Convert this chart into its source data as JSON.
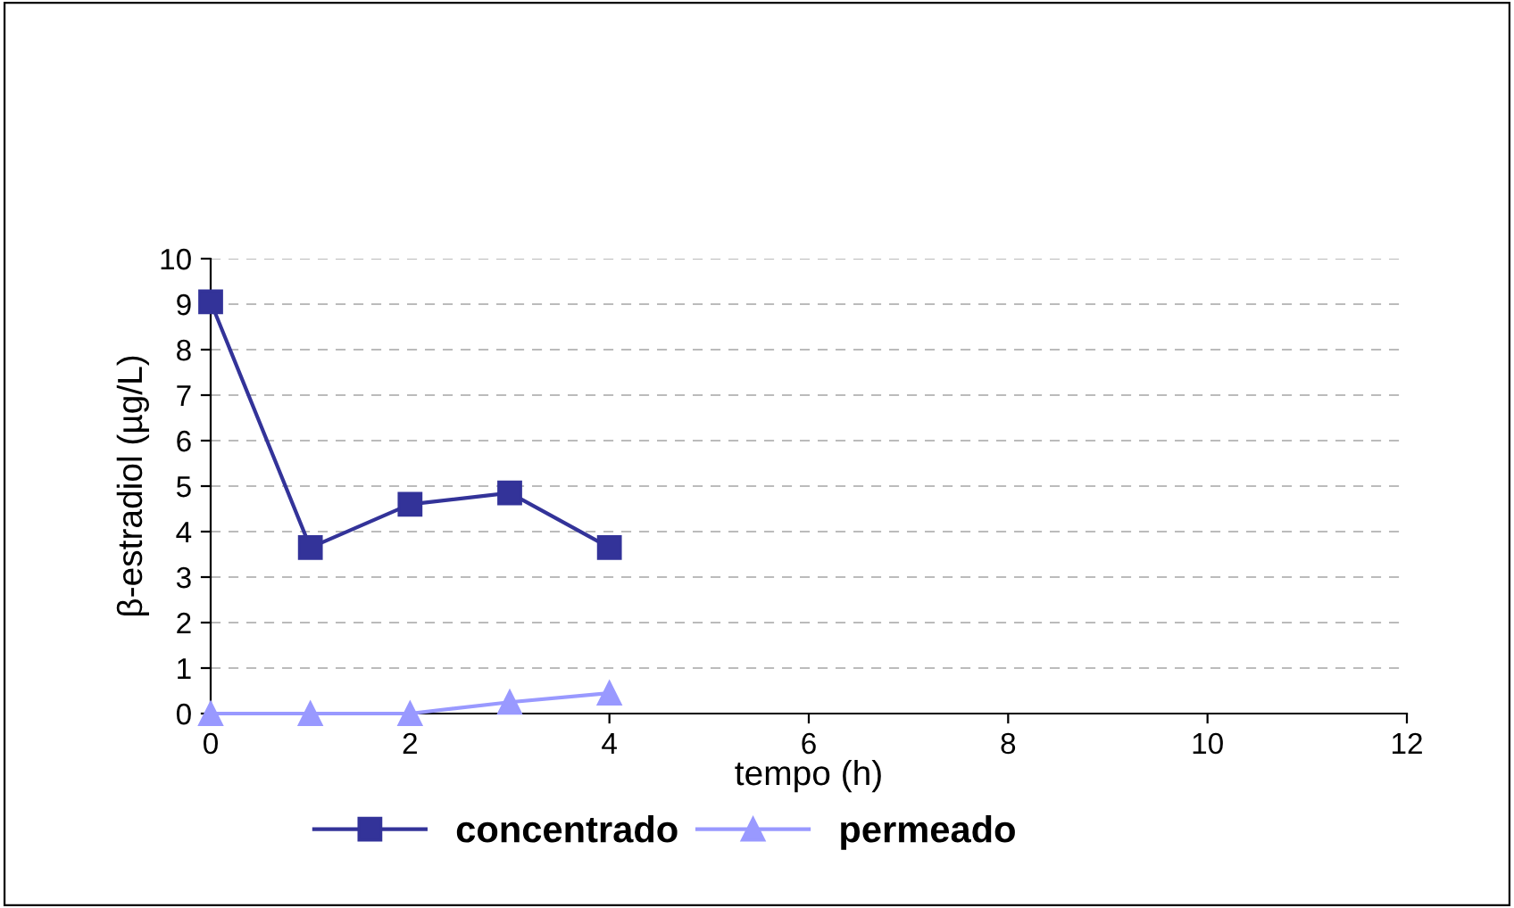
{
  "chart_data": {
    "type": "line",
    "xlabel": "tempo (h)",
    "ylabel": "β-estradiol (µg/L)",
    "x": [
      0,
      1,
      2,
      3,
      4
    ],
    "series": [
      {
        "name": "concentrado",
        "color": "#333399",
        "values": [
          9.05,
          3.65,
          4.6,
          4.85,
          3.65
        ],
        "marker": "square"
      },
      {
        "name": "permeado",
        "color": "#9999ff",
        "values": [
          0,
          0,
          0,
          0.25,
          0.45
        ],
        "marker": "triangle"
      }
    ],
    "xlim": [
      0,
      12
    ],
    "xticks": [
      0,
      2,
      4,
      6,
      8,
      10,
      12
    ],
    "ylim": [
      0,
      10
    ],
    "yticks": [
      0,
      1,
      2,
      3,
      4,
      5,
      6,
      7,
      8,
      9,
      10
    ],
    "grid": "y",
    "legend": "bottom",
    "line_style": "solid"
  }
}
